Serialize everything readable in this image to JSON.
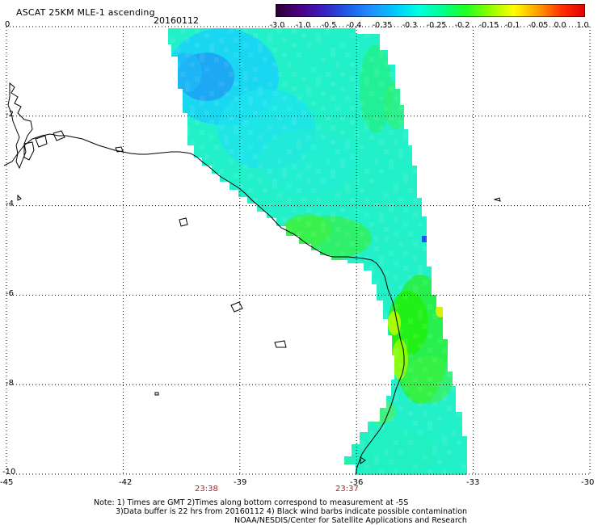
{
  "header": {
    "title": "ASCAT 25KM MLE-1 ascending",
    "date": "20160112"
  },
  "colorbar": {
    "labels": [
      "-3.0",
      "-1.0",
      "-0.5",
      "-0.4",
      "-0.35",
      "-0.3",
      "-0.25",
      "-0.2",
      "-0.15",
      "-0.1",
      "-0.05",
      "0.0",
      "1.0"
    ],
    "colors": [
      "#2a0033",
      "#4b0082",
      "#3a1fbf",
      "#1e5ae6",
      "#1f8fff",
      "#00c8ff",
      "#00ffe0",
      "#00ff90",
      "#20ff20",
      "#90ff00",
      "#ffff00",
      "#ffa000",
      "#ff3000",
      "#e00000"
    ]
  },
  "map": {
    "y_ticks": [
      "0",
      "-2",
      "-4",
      "-6",
      "-8",
      "-10"
    ],
    "x_ticks": [
      "-45",
      "-42",
      "-39",
      "-36",
      "-33",
      "-30"
    ],
    "times": [
      "23:38",
      "23:37"
    ]
  },
  "footer": {
    "note_line1": "Note: 1) Times are GMT 2)Times along bottom correspond to measurement at -5S",
    "note_line2": "3)Data buffer is 22 hrs from 20160112 4) Black wind barbs indicate possible contamination",
    "credit": "NOAA/NESDIS/Center for Satellite Applications and Research"
  }
}
